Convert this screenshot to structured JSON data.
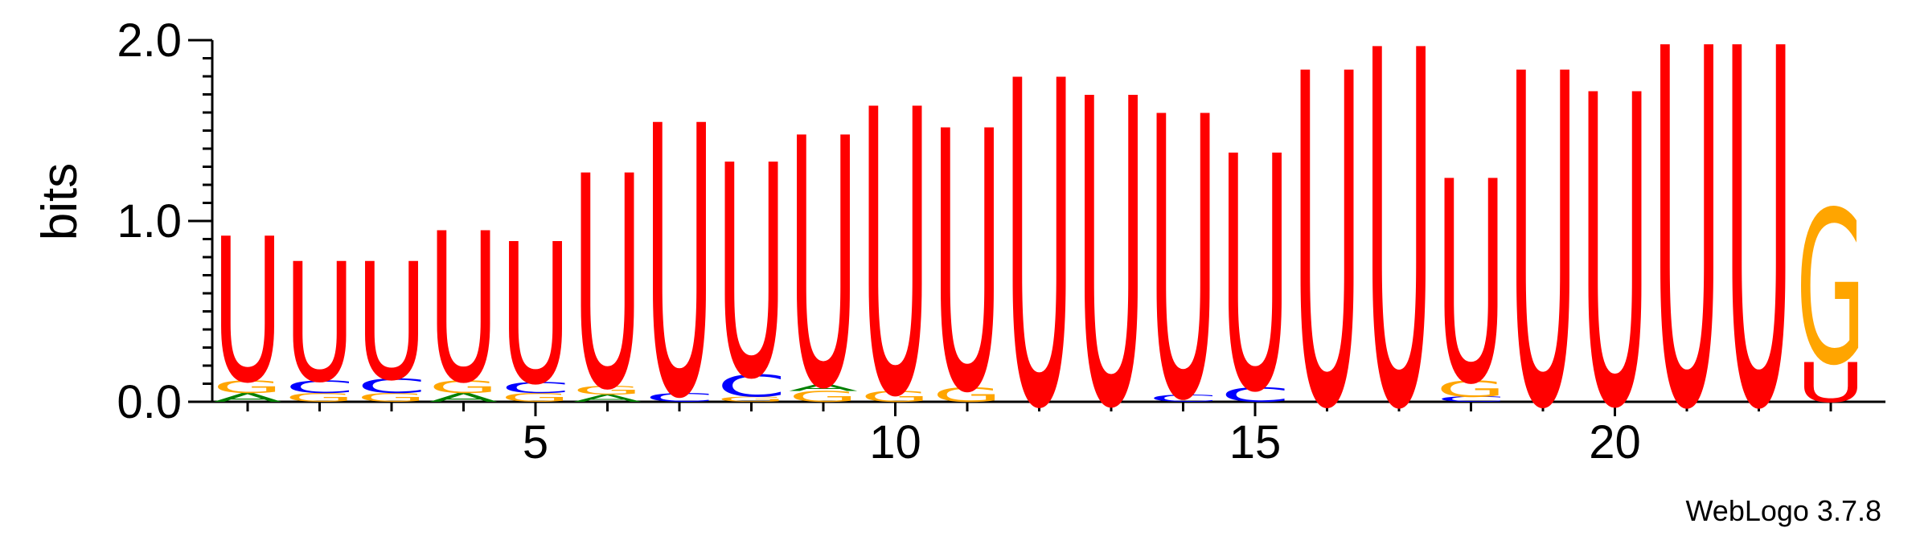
{
  "chart_data": {
    "type": "sequence-logo",
    "ylabel": "bits",
    "ylim": [
      0,
      2.0
    ],
    "y_ticks": [
      "0.0",
      "1.0",
      "2.0"
    ],
    "x_ticks": [
      5,
      10,
      15,
      20
    ],
    "x_range": [
      1,
      23
    ],
    "watermark": "WebLogo 3.7.8",
    "colors": {
      "U": "#ff0000",
      "G": "#ffa500",
      "C": "#0000ff",
      "A": "#008000"
    },
    "positions": [
      {
        "pos": 1,
        "stack": [
          {
            "l": "A",
            "h": 0.05
          },
          {
            "l": "G",
            "h": 0.07
          },
          {
            "l": "U",
            "h": 0.8
          }
        ]
      },
      {
        "pos": 2,
        "stack": [
          {
            "l": "G",
            "h": 0.05
          },
          {
            "l": "C",
            "h": 0.07
          },
          {
            "l": "U",
            "h": 0.66
          }
        ]
      },
      {
        "pos": 3,
        "stack": [
          {
            "l": "G",
            "h": 0.05
          },
          {
            "l": "C",
            "h": 0.08
          },
          {
            "l": "U",
            "h": 0.65
          }
        ]
      },
      {
        "pos": 4,
        "stack": [
          {
            "l": "A",
            "h": 0.05
          },
          {
            "l": "G",
            "h": 0.07
          },
          {
            "l": "U",
            "h": 0.83
          }
        ]
      },
      {
        "pos": 5,
        "stack": [
          {
            "l": "G",
            "h": 0.05
          },
          {
            "l": "C",
            "h": 0.06
          },
          {
            "l": "U",
            "h": 0.78
          }
        ]
      },
      {
        "pos": 6,
        "stack": [
          {
            "l": "A",
            "h": 0.04
          },
          {
            "l": "G",
            "h": 0.05
          },
          {
            "l": "U",
            "h": 1.18
          }
        ]
      },
      {
        "pos": 7,
        "stack": [
          {
            "l": "C",
            "h": 0.05
          },
          {
            "l": "U",
            "h": 1.5
          }
        ]
      },
      {
        "pos": 8,
        "stack": [
          {
            "l": "G",
            "h": 0.03
          },
          {
            "l": "C",
            "h": 0.12
          },
          {
            "l": "U",
            "h": 1.18
          }
        ]
      },
      {
        "pos": 9,
        "stack": [
          {
            "l": "G",
            "h": 0.06
          },
          {
            "l": "A",
            "h": 0.04
          },
          {
            "l": "U",
            "h": 1.38
          }
        ]
      },
      {
        "pos": 10,
        "stack": [
          {
            "l": "G",
            "h": 0.06
          },
          {
            "l": "U",
            "h": 1.58
          }
        ]
      },
      {
        "pos": 11,
        "stack": [
          {
            "l": "G",
            "h": 0.08
          },
          {
            "l": "U",
            "h": 1.44
          }
        ]
      },
      {
        "pos": 12,
        "stack": [
          {
            "l": "U",
            "h": 1.8
          }
        ]
      },
      {
        "pos": 13,
        "stack": [
          {
            "l": "U",
            "h": 1.7
          }
        ]
      },
      {
        "pos": 14,
        "stack": [
          {
            "l": "C",
            "h": 0.04
          },
          {
            "l": "U",
            "h": 1.56
          }
        ]
      },
      {
        "pos": 15,
        "stack": [
          {
            "l": "C",
            "h": 0.08
          },
          {
            "l": "U",
            "h": 1.3
          }
        ]
      },
      {
        "pos": 16,
        "stack": [
          {
            "l": "U",
            "h": 1.84
          }
        ]
      },
      {
        "pos": 17,
        "stack": [
          {
            "l": "U",
            "h": 1.97
          }
        ]
      },
      {
        "pos": 18,
        "stack": [
          {
            "l": "C",
            "h": 0.03
          },
          {
            "l": "G",
            "h": 0.09
          },
          {
            "l": "U",
            "h": 1.12
          }
        ]
      },
      {
        "pos": 19,
        "stack": [
          {
            "l": "U",
            "h": 1.84
          }
        ]
      },
      {
        "pos": 20,
        "stack": [
          {
            "l": "U",
            "h": 1.72
          }
        ]
      },
      {
        "pos": 21,
        "stack": [
          {
            "l": "U",
            "h": 1.98
          }
        ]
      },
      {
        "pos": 22,
        "stack": [
          {
            "l": "U",
            "h": 1.98
          }
        ]
      },
      {
        "pos": 23,
        "stack": [
          {
            "l": "U",
            "h": 0.22
          },
          {
            "l": "G",
            "h": 0.85
          }
        ]
      }
    ]
  }
}
